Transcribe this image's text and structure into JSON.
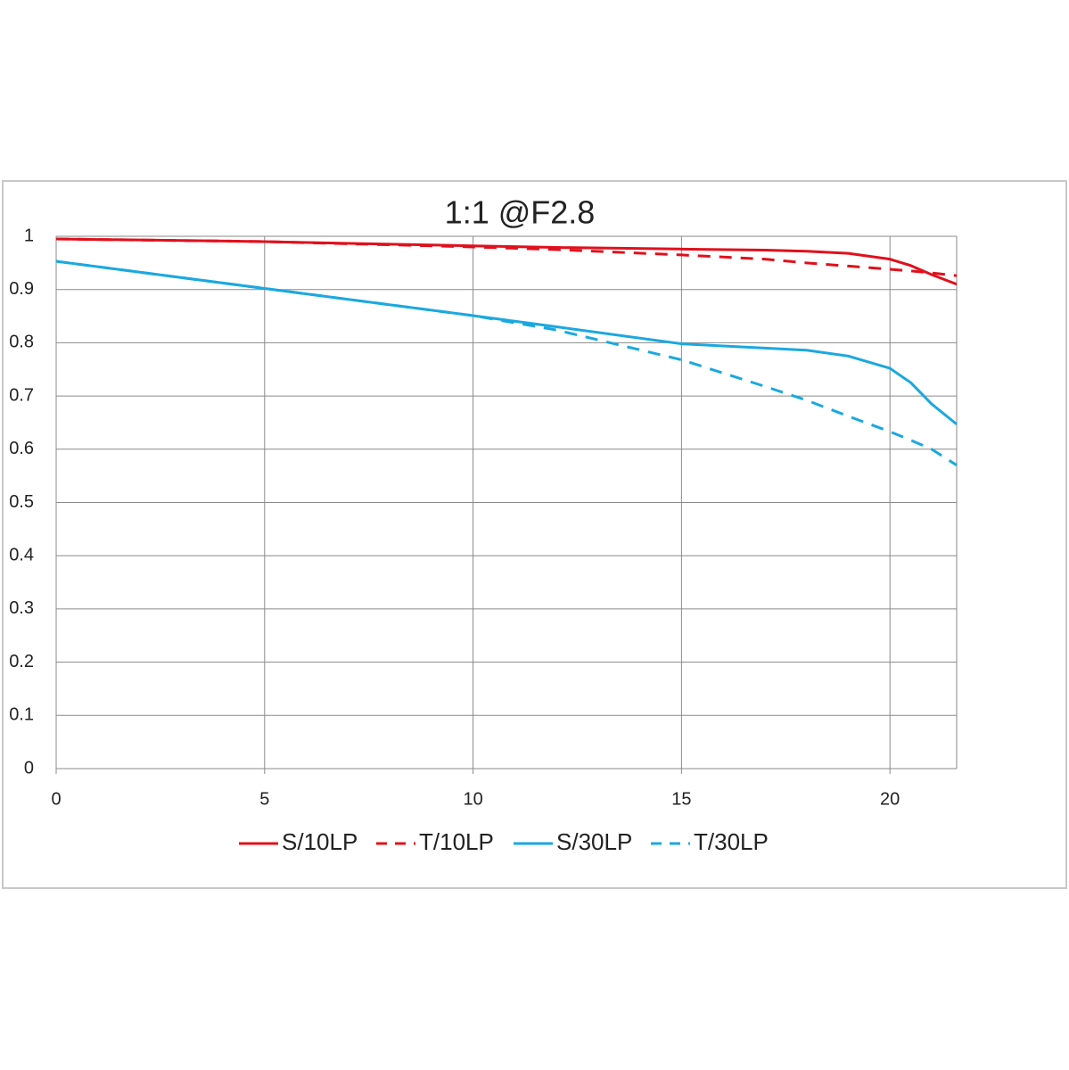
{
  "chart_data": {
    "type": "line",
    "title": "1:1  @F2.8",
    "x": [
      0,
      5,
      10,
      12,
      15,
      17,
      18,
      19,
      20,
      20.5,
      21,
      21.6
    ],
    "series": [
      {
        "name": "S/10LP",
        "color": "#e0101c",
        "dashed": false,
        "values": [
          0.995,
          0.99,
          0.982,
          0.979,
          0.976,
          0.974,
          0.972,
          0.968,
          0.957,
          0.945,
          0.928,
          0.91
        ]
      },
      {
        "name": "T/10LP",
        "color": "#e0101c",
        "dashed": true,
        "values": [
          0.995,
          0.99,
          0.98,
          0.975,
          0.965,
          0.957,
          0.95,
          0.944,
          0.938,
          0.935,
          0.931,
          0.926
        ]
      },
      {
        "name": "S/30LP",
        "color": "#1aa8e0",
        "dashed": false,
        "values": [
          0.953,
          0.902,
          0.851,
          0.83,
          0.798,
          0.79,
          0.786,
          0.775,
          0.752,
          0.725,
          0.685,
          0.647
        ]
      },
      {
        "name": "T/30LP",
        "color": "#1aa8e0",
        "dashed": true,
        "values": [
          0.953,
          0.902,
          0.851,
          0.824,
          0.768,
          0.718,
          0.692,
          0.662,
          0.633,
          0.617,
          0.6,
          0.57
        ]
      }
    ],
    "xlim": [
      0,
      21.6
    ],
    "xticks": [
      0,
      5,
      10,
      15,
      20
    ],
    "ylim": [
      0,
      1
    ],
    "yticks": [
      0,
      0.1,
      0.2,
      0.3,
      0.4,
      0.5,
      0.6,
      0.7,
      0.8,
      0.9,
      1
    ],
    "grid": true,
    "legend": "bottom"
  }
}
